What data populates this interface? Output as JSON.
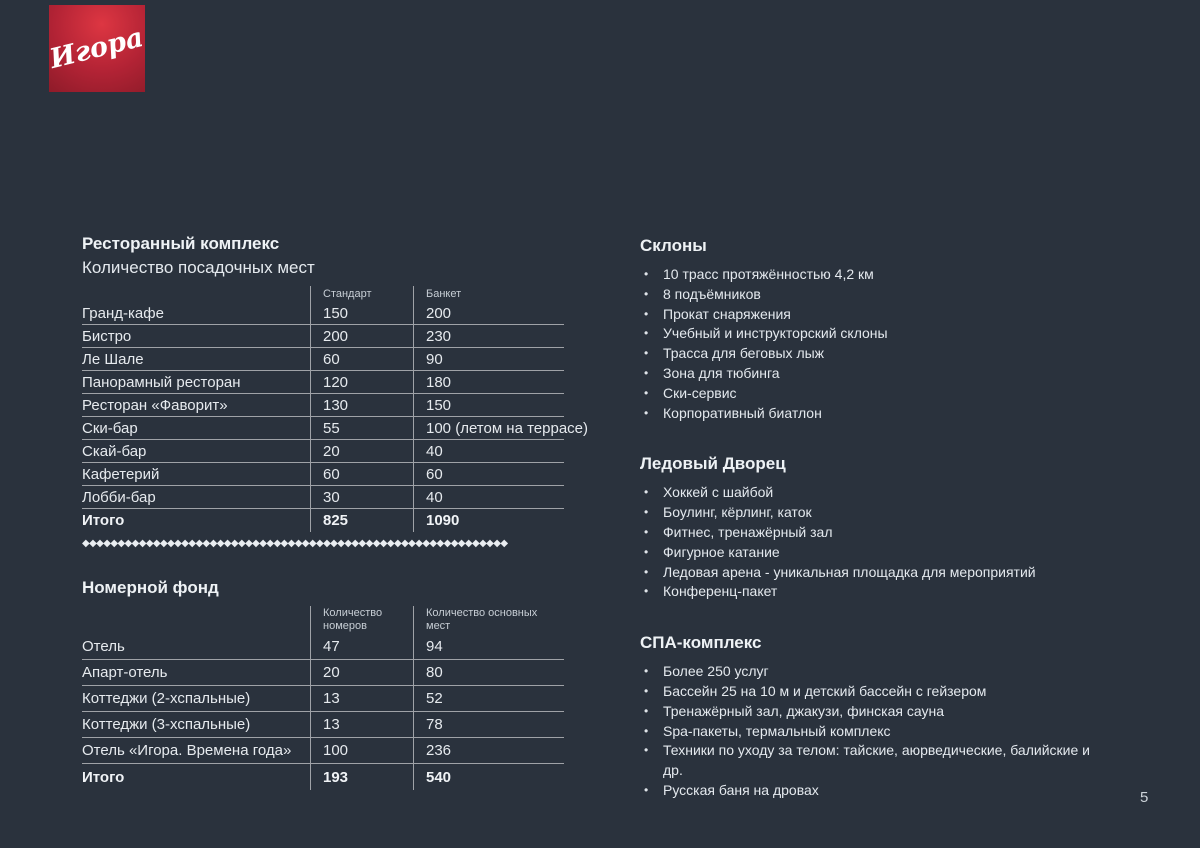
{
  "page": {
    "number": "5",
    "background": "#2a323d",
    "accent_red": "#c62434"
  },
  "logo": {
    "text": "Игора"
  },
  "ui": {
    "bullet": "•"
  },
  "divider": "◆◆◆◆◆◆◆◆◆◆◆◆◆◆◆◆◆◆◆◆◆◆◆◆◆◆◆◆◆◆◆◆◆◆◆◆◆◆◆◆◆◆◆◆◆◆◆◆◆◆◆◆◆◆◆◆◆◆◆◆",
  "restaurant": {
    "title": "Ресторанный комплекс",
    "subtitle": "Количество посадочных мест",
    "columns": [
      "Стандарт",
      "Банкет"
    ],
    "rows": [
      {
        "name": "Гранд-кафе",
        "v1": "150",
        "v2": "200"
      },
      {
        "name": "Бистро",
        "v1": "200",
        "v2": "230"
      },
      {
        "name": "Ле Шале",
        "v1": "60",
        "v2": "90"
      },
      {
        "name": "Панорамный ресторан",
        "v1": "120",
        "v2": "180"
      },
      {
        "name": "Ресторан «Фаворит»",
        "v1": "130",
        "v2": "150"
      },
      {
        "name": "Ски-бар",
        "v1": "55",
        "v2": "100 (летом на террасе)"
      },
      {
        "name": "Скай-бар",
        "v1": "20",
        "v2": "40"
      },
      {
        "name": "Кафетерий",
        "v1": "60",
        "v2": "60"
      },
      {
        "name": "Лобби-бар",
        "v1": "30",
        "v2": "40"
      }
    ],
    "total": {
      "name": "Итого",
      "v1": "825",
      "v2": "1090"
    }
  },
  "rooms": {
    "title": "Номерной фонд",
    "columns": [
      "Количество номеров",
      "Количество основных мест"
    ],
    "rows": [
      {
        "name": "Отель",
        "v1": "47",
        "v2": "94"
      },
      {
        "name": "Апарт-отель",
        "v1": "20",
        "v2": "80"
      },
      {
        "name": "Коттеджи (2-хспальные)",
        "v1": "13",
        "v2": "52"
      },
      {
        "name": "Коттеджи (3-хспальные)",
        "v1": "13",
        "v2": "78"
      },
      {
        "name": "Отель «Игора. Времена года»",
        "v1": "100",
        "v2": "236"
      }
    ],
    "total": {
      "name": "Итого",
      "v1": "193",
      "v2": "540"
    }
  },
  "sections": [
    {
      "title": "Склоны",
      "items": [
        "10 трасс протяжённостью 4,2 км",
        "8 подъёмников",
        "Прокат снаряжения",
        "Учебный и инструкторский склоны",
        "Трасса для беговых лыж",
        "Зона для тюбинга",
        "Ски-сервис",
        "Корпоративный биатлон"
      ]
    },
    {
      "title": "Ледовый Дворец",
      "items": [
        "Хоккей с шайбой",
        "Боулинг, кёрлинг, каток",
        "Фитнес, тренажёрный зал",
        "Фигурное катание",
        "Ледовая арена - уникальная площадка для мероприятий",
        "Конференц-пакет"
      ]
    },
    {
      "title": "СПА-комплекс",
      "items": [
        "Более 250 услуг",
        "Бассейн 25 на 10 м и детский бассейн с гейзером",
        "Тренажёрный зал, джакузи, финская сауна",
        "Spa-пакеты, термальный комплекс",
        "Техники по уходу за телом: тайские, аюрведические, балийские и др.",
        "Русская баня на дровах"
      ]
    }
  ]
}
